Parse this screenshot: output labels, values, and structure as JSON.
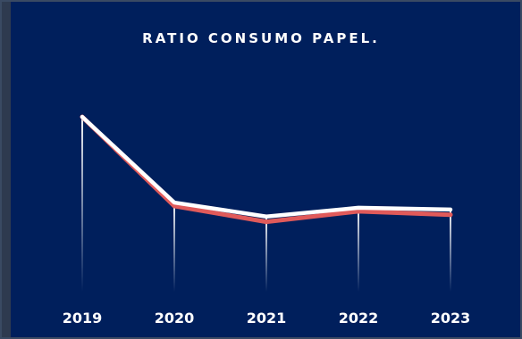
{
  "chart_data": {
    "type": "line",
    "title": "RATIO CONSUMO PAPEL.",
    "categories": [
      "2019",
      "2020",
      "2021",
      "2022",
      "2023"
    ],
    "series": [
      {
        "color": "#e05a5a",
        "values": [
          1.0,
          0.49,
          0.4,
          0.46,
          0.44
        ]
      },
      {
        "color": "#ffffff",
        "values": [
          1.0,
          0.51,
          0.43,
          0.48,
          0.47
        ]
      }
    ],
    "ylim": [
      0,
      1.2
    ],
    "grid": false,
    "legend": "none"
  },
  "colors": {
    "background": "#001f5c",
    "frame": "#2e3a4f",
    "accent_line": "#e05a5a",
    "main_line": "#ffffff"
  }
}
